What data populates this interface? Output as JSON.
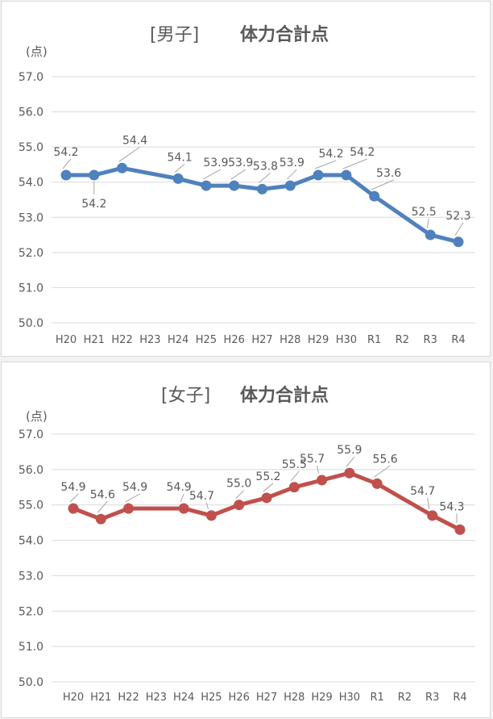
{
  "chart_data": [
    {
      "type": "line",
      "title_prefix": "[男子]",
      "title": "体力合計点",
      "unit": "(点)",
      "categories": [
        "H20",
        "H21",
        "H22",
        "H23",
        "H24",
        "H25",
        "H26",
        "H27",
        "H28",
        "H29",
        "H30",
        "R1",
        "R2",
        "R3",
        "R4"
      ],
      "series": [
        {
          "values": [
            54.2,
            54.2,
            54.4,
            null,
            54.1,
            53.9,
            53.9,
            53.8,
            53.9,
            54.2,
            54.2,
            53.6,
            null,
            52.5,
            52.3
          ],
          "color": "#4f81bd"
        }
      ],
      "ylim": [
        50.0,
        57.0
      ],
      "yticks": [
        "50.0",
        "51.0",
        "52.0",
        "53.0",
        "54.0",
        "55.0",
        "56.0",
        "57.0"
      ],
      "grid": true,
      "data_label_above": [
        true,
        false,
        true,
        null,
        true,
        true,
        true,
        true,
        true,
        true,
        true,
        true,
        null,
        true,
        true
      ]
    },
    {
      "type": "line",
      "title_prefix": "[女子]",
      "title": "体力合計点",
      "unit": "(点)",
      "categories": [
        "H20",
        "H21",
        "H22",
        "H23",
        "H24",
        "H25",
        "H26",
        "H27",
        "H28",
        "H29",
        "H30",
        "R1",
        "R2",
        "R3",
        "R4"
      ],
      "series": [
        {
          "values": [
            54.9,
            54.6,
            54.9,
            null,
            54.9,
            54.7,
            55.0,
            55.2,
            55.5,
            55.7,
            55.9,
            55.6,
            null,
            54.7,
            54.3
          ],
          "color": "#c0504d"
        }
      ],
      "ylim": [
        50.0,
        57.0
      ],
      "yticks": [
        "50.0",
        "51.0",
        "52.0",
        "53.0",
        "54.0",
        "55.0",
        "56.0",
        "57.0"
      ],
      "grid": true
    }
  ]
}
